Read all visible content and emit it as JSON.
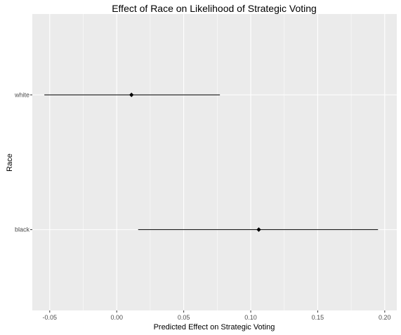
{
  "chart_data": {
    "type": "scatter",
    "title": "Effect of Race on Likelihood of Strategic Voting",
    "xlabel": "Predicted Effect on Strategic Voting",
    "ylabel": "Race",
    "xlim": [
      -0.063,
      0.209
    ],
    "x_ticks": [
      -0.05,
      0.0,
      0.05,
      0.1,
      0.15,
      0.2
    ],
    "x_tick_labels": [
      "-0.05",
      "0.00",
      "0.05",
      "0.10",
      "0.15",
      "0.20"
    ],
    "categories": [
      "white",
      "black"
    ],
    "points": [
      {
        "category": "white",
        "estimate": 0.011,
        "lower": -0.054,
        "upper": 0.077
      },
      {
        "category": "black",
        "estimate": 0.106,
        "lower": 0.016,
        "upper": 0.195
      }
    ],
    "grid": true,
    "legend": "none",
    "colors": {
      "panel": "#ebebeb",
      "grid_major": "#ffffff",
      "mark": "#000000",
      "tick_text": "#4d4d4d",
      "tick_mark": "#333333"
    }
  }
}
